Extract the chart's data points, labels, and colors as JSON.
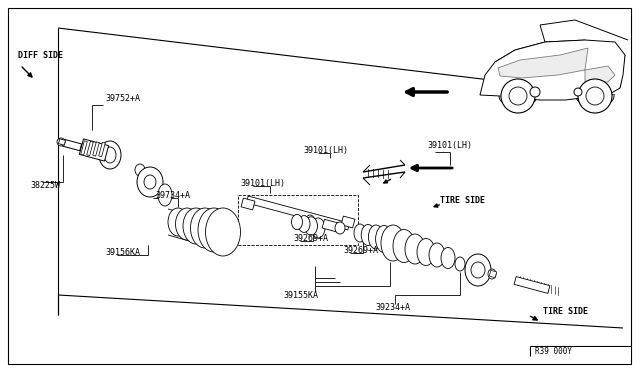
{
  "bg_color": "#ffffff",
  "line_color": "#000000",
  "text_color": "#000000",
  "diagram_number": "R39 000Y",
  "diff_side": "DIFF SIDE",
  "tire_side_r": "TIRE SIDE",
  "tire_side_b": "TIRE SIDE",
  "p39752": "39752+A",
  "p38225": "38225W",
  "p39734": "39734+A",
  "p39156": "39156KA",
  "p39101_1": "39101(LH)",
  "p39101_2": "39101(LH)",
  "p39269_1": "39269+A",
  "p39269_2": "39269+A",
  "p39155": "39155KA",
  "p39234": "39234+A",
  "fs": 6.0,
  "fs_small": 5.5
}
